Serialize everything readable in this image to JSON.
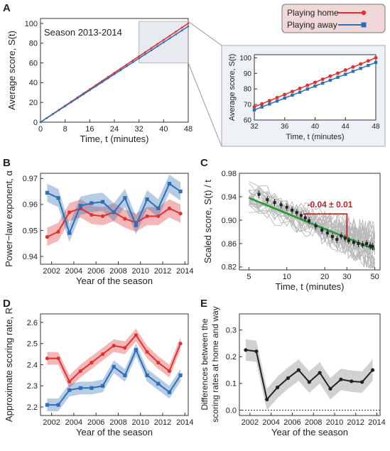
{
  "colors": {
    "home": "#e03030",
    "away": "#2f6eb5",
    "gray": "#b8b8b8",
    "black": "#222222",
    "green": "#2a9a3a",
    "legend_bg": "#f0d8d8"
  },
  "legend": {
    "home": "Playing home",
    "away": "Playing away"
  },
  "chart_data": [
    {
      "panel": "A",
      "type": "line",
      "annotation": "Season 2013-2014",
      "xlabel": "Time, t (minutes)",
      "ylabel": "Average score, S(t)",
      "xlim": [
        0,
        48
      ],
      "ylim": [
        0,
        105
      ],
      "xticks": [
        "0",
        "8",
        "16",
        "24",
        "32",
        "40",
        "48"
      ],
      "yticks": [
        "0",
        "20",
        "40",
        "60",
        "80",
        "100"
      ],
      "series": [
        {
          "name": "Playing home",
          "x": [
            0,
            48
          ],
          "y": [
            0,
            100
          ]
        },
        {
          "name": "Playing away",
          "x": [
            0,
            48
          ],
          "y": [
            0,
            97
          ]
        }
      ]
    },
    {
      "panel": "A-inset",
      "type": "line",
      "xlabel": "Time, t (minutes)",
      "ylabel": "Average score, S(t)",
      "xlim": [
        32,
        48
      ],
      "ylim": [
        60,
        102
      ],
      "xticks": [
        "32",
        "36",
        "40",
        "44",
        "48"
      ],
      "yticks": [
        "60",
        "70",
        "80",
        "90",
        "100"
      ],
      "series": [
        {
          "name": "Playing home",
          "x": [
            32,
            33,
            34,
            35,
            36,
            37,
            38,
            39,
            40,
            41,
            42,
            43,
            44,
            45,
            46,
            47,
            48
          ],
          "y": [
            68.5,
            70.4,
            72.4,
            74.4,
            76.4,
            78.3,
            80.3,
            82.3,
            84.2,
            86.2,
            88.2,
            90.1,
            92.1,
            94.1,
            96.0,
            98.0,
            100.0
          ]
        },
        {
          "name": "Playing away",
          "x": [
            32,
            33,
            34,
            35,
            36,
            37,
            38,
            39,
            40,
            41,
            42,
            43,
            44,
            45,
            46,
            47,
            48
          ],
          "y": [
            66.5,
            68.4,
            70.3,
            72.2,
            74.1,
            76.0,
            77.9,
            79.9,
            81.8,
            83.7,
            85.6,
            87.5,
            89.4,
            91.3,
            93.2,
            95.1,
            97.0
          ]
        }
      ]
    },
    {
      "panel": "B",
      "type": "line",
      "xlabel": "Year of the season",
      "ylabel": "Power−law exponent, α",
      "xlim": [
        2001,
        2014.3
      ],
      "ylim": [
        0.937,
        0.972
      ],
      "xticks": [
        "2002",
        "2004",
        "2006",
        "2008",
        "2010",
        "2012",
        "2014"
      ],
      "yticks": [
        "0.94",
        "0.95",
        "0.96",
        "0.97"
      ],
      "series": [
        {
          "name": "Playing home",
          "x": [
            2001.6,
            2002.6,
            2003.6,
            2004.6,
            2005.6,
            2006.6,
            2007.6,
            2008.6,
            2009.6,
            2010.6,
            2011.6,
            2012.6,
            2013.6
          ],
          "y": [
            0.9475,
            0.9495,
            0.957,
            0.9585,
            0.956,
            0.9555,
            0.957,
            0.9545,
            0.953,
            0.9555,
            0.9555,
            0.9585,
            0.9565
          ],
          "band": 0.0035
        },
        {
          "name": "Playing away",
          "x": [
            2001.6,
            2002.6,
            2003.6,
            2004.6,
            2005.6,
            2006.6,
            2007.6,
            2008.6,
            2009.6,
            2010.6,
            2011.6,
            2012.6,
            2013.6
          ],
          "y": [
            0.9645,
            0.9625,
            0.949,
            0.9595,
            0.9605,
            0.961,
            0.957,
            0.9625,
            0.952,
            0.962,
            0.9585,
            0.968,
            0.965
          ],
          "band": 0.0035
        }
      ]
    },
    {
      "panel": "C",
      "type": "scatter",
      "xlabel": "Time, t (minutes)",
      "ylabel": "Scaled score, S(t) / t",
      "xscale": "log",
      "xlim": [
        4.2,
        55
      ],
      "ylim": [
        0.815,
        0.98
      ],
      "xticks": [
        "5",
        "10",
        "20",
        "30",
        "50"
      ],
      "yticks": [
        "0.82",
        "0.86",
        "0.90",
        "0.94",
        "0.98"
      ],
      "annotation": "-0.04 ± 0.01",
      "fit": {
        "x": [
          5,
          50
        ],
        "y": [
          0.938,
          0.85
        ]
      },
      "points": {
        "x": [
          6,
          7,
          8,
          9,
          10,
          11,
          12,
          13,
          14,
          15,
          17,
          19,
          21,
          23,
          25,
          27,
          29,
          31,
          34,
          37,
          40,
          43,
          46,
          48
        ],
        "y": [
          0.944,
          0.935,
          0.93,
          0.926,
          0.922,
          0.917,
          0.913,
          0.908,
          0.904,
          0.899,
          0.89,
          0.883,
          0.878,
          0.872,
          0.867,
          0.873,
          0.869,
          0.865,
          0.862,
          0.86,
          0.858,
          0.86,
          0.856,
          0.855
        ]
      }
    },
    {
      "panel": "D",
      "type": "line",
      "xlabel": "Year of the season",
      "ylabel": "Approximate scoring rate, R",
      "xlim": [
        2001,
        2014.3
      ],
      "ylim": [
        2.16,
        2.64
      ],
      "xticks": [
        "2002",
        "2004",
        "2006",
        "2008",
        "2010",
        "2012",
        "2014"
      ],
      "yticks": [
        "2.2",
        "2.3",
        "2.4",
        "2.5",
        "2.6"
      ],
      "series": [
        {
          "name": "Playing home",
          "x": [
            2001.6,
            2002.6,
            2003.6,
            2004.6,
            2005.6,
            2006.6,
            2007.6,
            2008.6,
            2009.6,
            2010.6,
            2011.6,
            2012.6,
            2013.6
          ],
          "y": [
            2.43,
            2.43,
            2.32,
            2.37,
            2.41,
            2.45,
            2.49,
            2.48,
            2.54,
            2.46,
            2.41,
            2.37,
            2.5
          ],
          "band": 0.03
        },
        {
          "name": "Playing away",
          "x": [
            2001.6,
            2002.6,
            2003.6,
            2004.6,
            2005.6,
            2006.6,
            2007.6,
            2008.6,
            2009.6,
            2010.6,
            2011.6,
            2012.6,
            2013.6
          ],
          "y": [
            2.21,
            2.21,
            2.28,
            2.29,
            2.29,
            2.3,
            2.39,
            2.35,
            2.47,
            2.35,
            2.31,
            2.27,
            2.35
          ],
          "band": 0.03
        }
      ]
    },
    {
      "panel": "E",
      "type": "line",
      "xlabel": "Year of the season",
      "ylabel": "Differences between the scoring rates at home and way",
      "xlim": [
        2001,
        2014.3
      ],
      "ylim": [
        -0.02,
        0.36
      ],
      "xticks": [
        "2002",
        "2004",
        "2006",
        "2008",
        "2010",
        "2012",
        "2014"
      ],
      "yticks": [
        "0.0",
        "0.1",
        "0.2",
        "0.3"
      ],
      "series": [
        {
          "name": "",
          "x": [
            2001.6,
            2002.6,
            2003.6,
            2004.6,
            2005.6,
            2006.6,
            2007.6,
            2008.6,
            2009.6,
            2010.6,
            2011.6,
            2012.6,
            2013.6
          ],
          "y": [
            0.225,
            0.22,
            0.04,
            0.085,
            0.12,
            0.15,
            0.105,
            0.14,
            0.08,
            0.115,
            0.108,
            0.105,
            0.15
          ],
          "band": 0.04
        }
      ]
    }
  ]
}
